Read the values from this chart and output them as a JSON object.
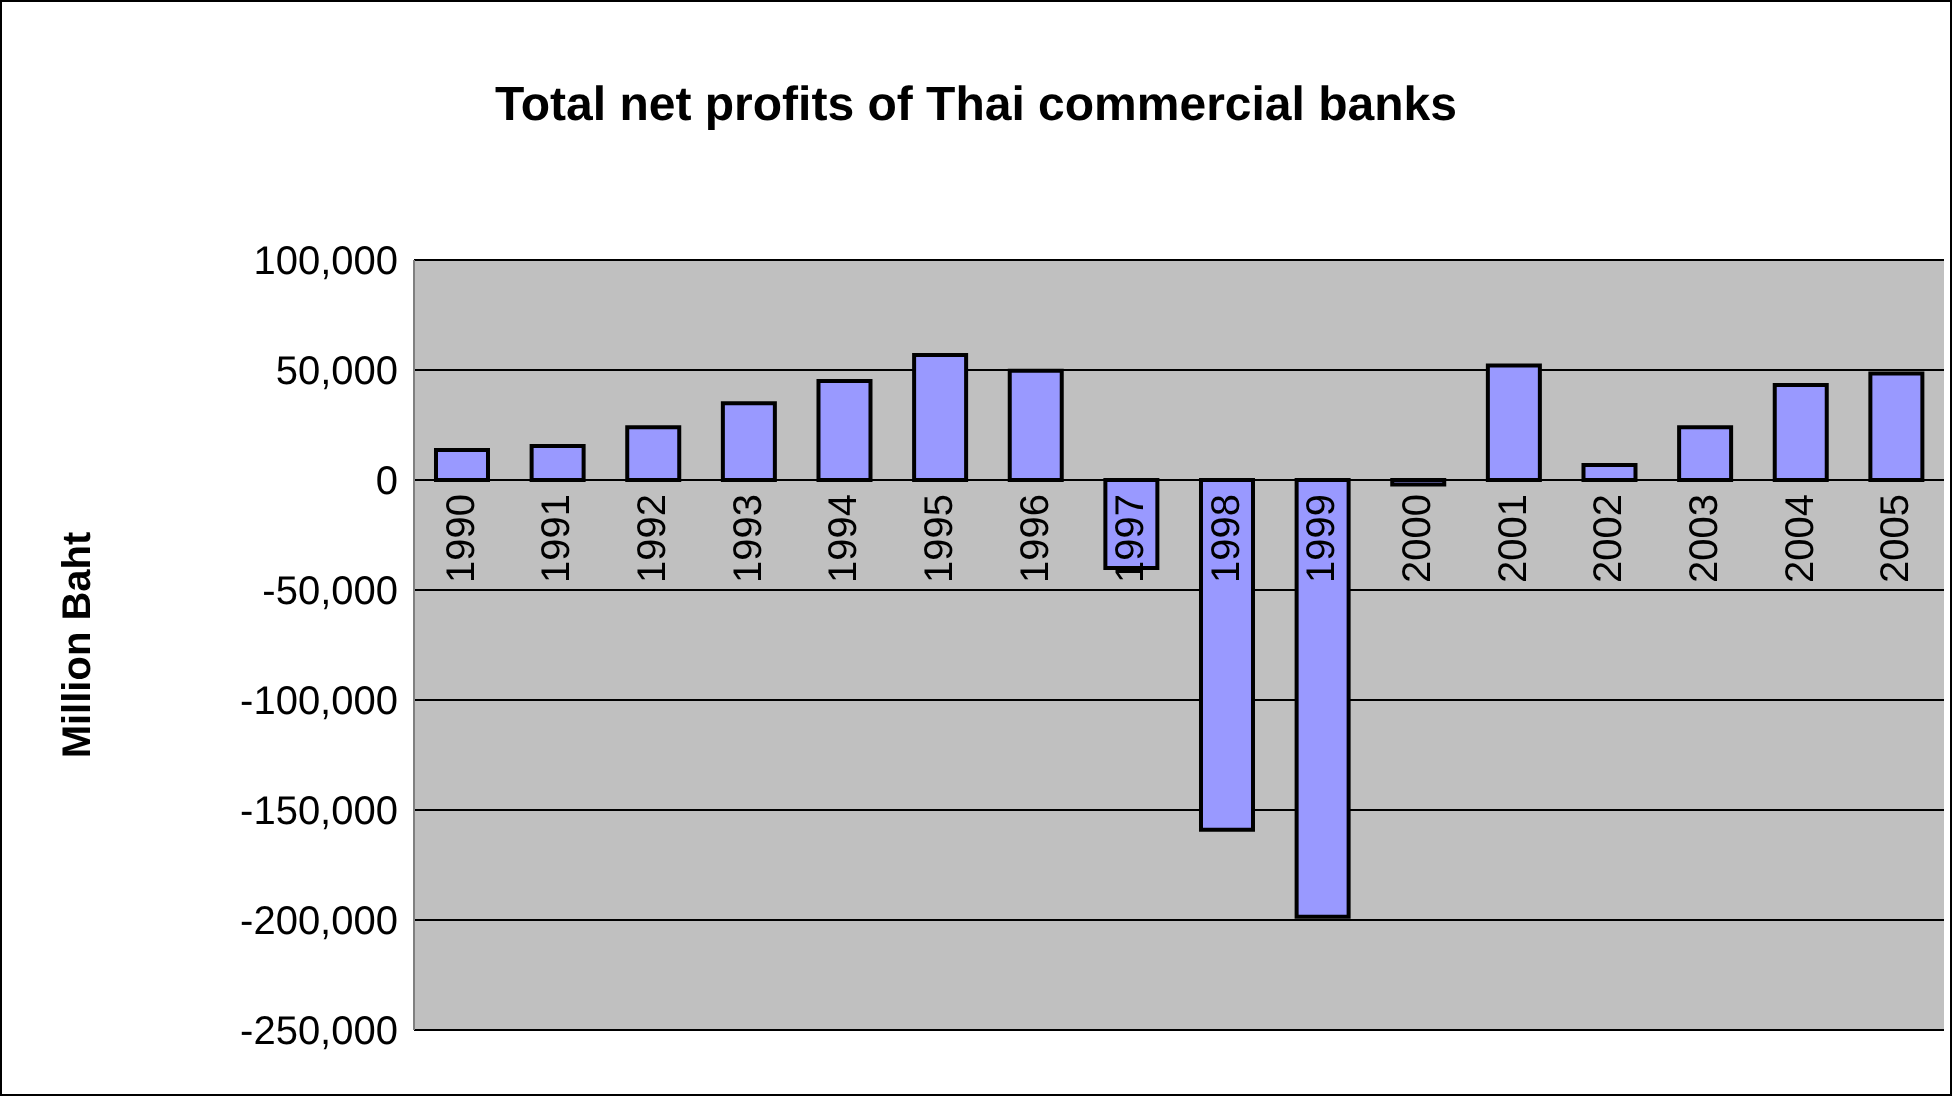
{
  "chart_data": {
    "type": "bar",
    "title": "Total net profits of Thai commercial banks",
    "ylabel": "Million Baht",
    "categories": [
      "1990",
      "1991",
      "1992",
      "1993",
      "1994",
      "1995",
      "1996",
      "1997",
      "1998",
      "1999",
      "2000",
      "2001",
      "2002",
      "2003",
      "2004",
      "2005"
    ],
    "values": [
      13600,
      15400,
      24000,
      34900,
      45000,
      56800,
      49700,
      -40000,
      -159000,
      -198500,
      -2000,
      52000,
      6800,
      24000,
      43200,
      48400
    ],
    "color": "#9999ff",
    "ylim": [
      -250000,
      100000
    ],
    "yticks": [
      {
        "value": -250000,
        "label": "-250,000"
      },
      {
        "value": -200000,
        "label": "-200,000"
      },
      {
        "value": -150000,
        "label": "-150,000"
      },
      {
        "value": -100000,
        "label": "-100,000"
      },
      {
        "value": -50000,
        "label": "-50,000"
      },
      0,
      {
        "value": 50000,
        "label": "50,000"
      },
      {
        "value": 100000,
        "label": "100,000"
      }
    ],
    "grid": "y",
    "legend": false
  }
}
